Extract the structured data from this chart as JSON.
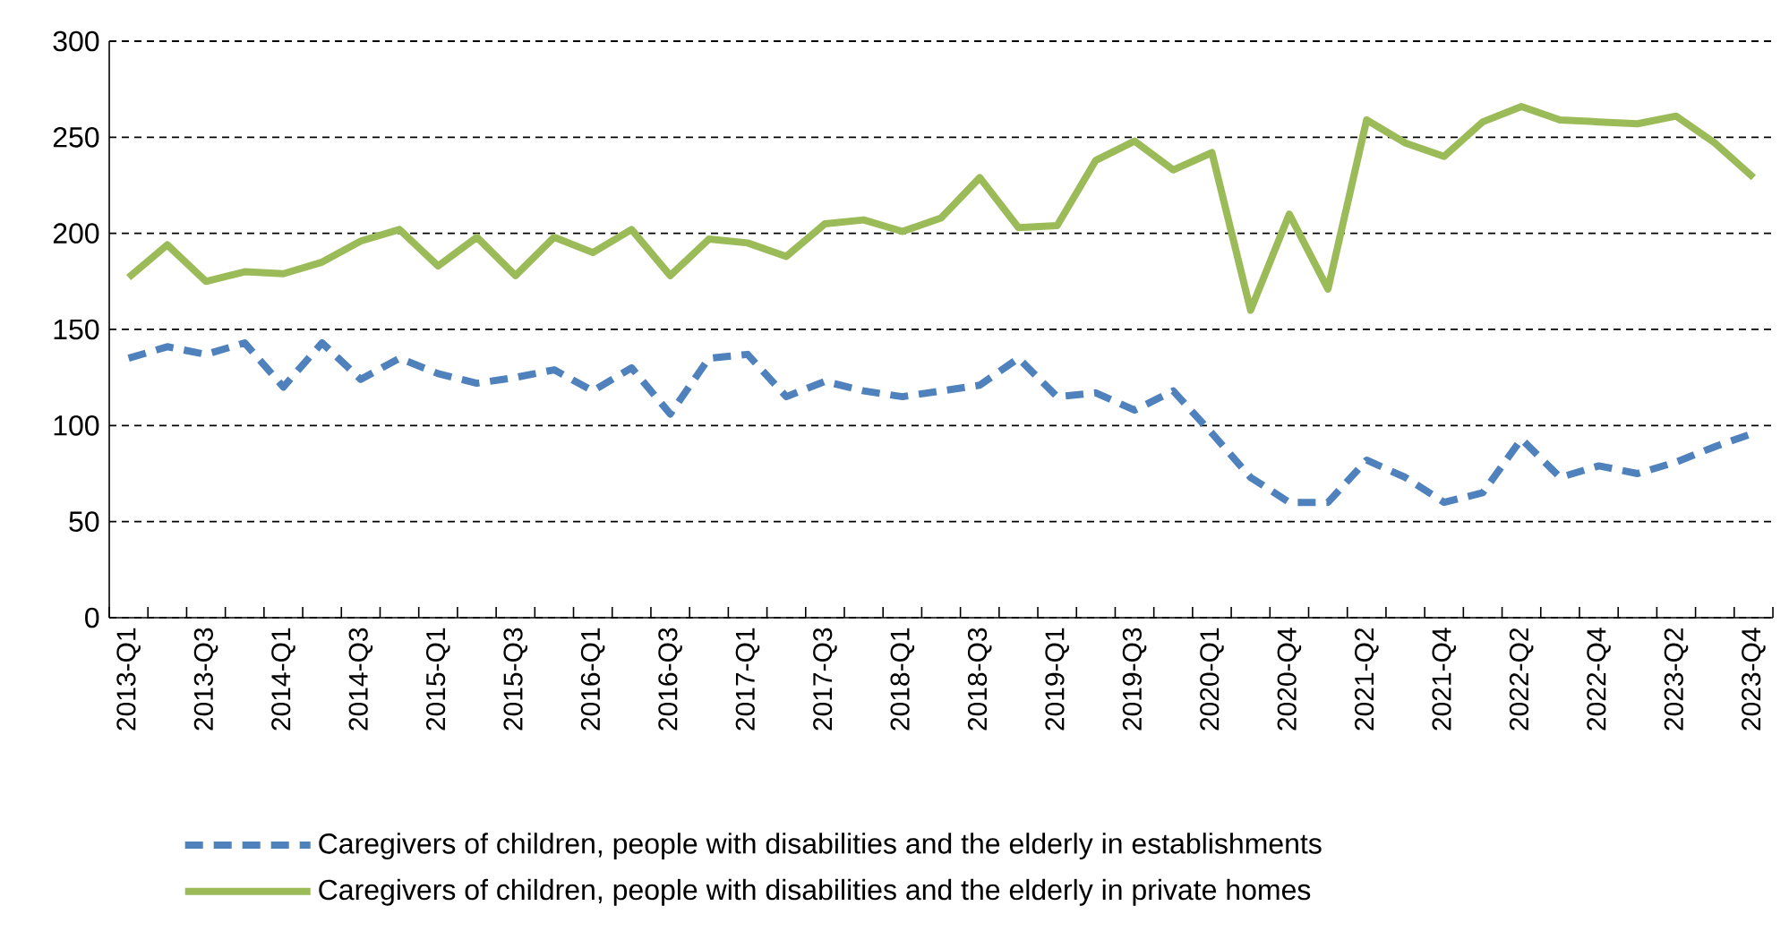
{
  "chart_data": {
    "type": "line",
    "categories": [
      "2013-Q1",
      null,
      "2013-Q3",
      null,
      "2014-Q1",
      null,
      "2014-Q3",
      null,
      "2015-Q1",
      null,
      "2015-Q3",
      null,
      "2016-Q1",
      null,
      "2016-Q3",
      null,
      "2017-Q1",
      null,
      "2017-Q3",
      null,
      "2018-Q1",
      null,
      "2018-Q3",
      null,
      "2019-Q1",
      null,
      "2019-Q3",
      null,
      "2020-Q1",
      null,
      "2020-Q4",
      null,
      "2021-Q2",
      null,
      "2021-Q4",
      null,
      "2022-Q2",
      null,
      "2022-Q4",
      null,
      "2023-Q2",
      null,
      "2023-Q4"
    ],
    "series": [
      {
        "name": "Caregivers of children, people with disabilities and the elderly in establishments",
        "color": "#4f81bd",
        "line_style": "dashed",
        "values": [
          135,
          141,
          137,
          143,
          120,
          143,
          124,
          135,
          127,
          122,
          125,
          129,
          118,
          130,
          106,
          135,
          137,
          115,
          123,
          118,
          115,
          118,
          121,
          135,
          115,
          117,
          108,
          118,
          96,
          73,
          60,
          60,
          82,
          73,
          60,
          65,
          93,
          73,
          79,
          75,
          81,
          89,
          96
        ]
      },
      {
        "name": "Caregivers of children, people with disabilities and the elderly in private homes",
        "color": "#9bbb59",
        "line_style": "solid",
        "values": [
          177,
          194,
          175,
          180,
          179,
          185,
          196,
          202,
          183,
          198,
          178,
          198,
          190,
          202,
          178,
          197,
          195,
          188,
          205,
          207,
          201,
          208,
          229,
          203,
          204,
          238,
          248,
          233,
          242,
          160,
          210,
          171,
          259,
          247,
          240,
          258,
          266,
          259,
          258,
          257,
          261,
          247,
          229
        ]
      }
    ],
    "ylim": [
      0,
      300
    ],
    "yticks": [
      0,
      50,
      100,
      150,
      200,
      250,
      300
    ],
    "grid": "y",
    "legend": "bottom"
  }
}
